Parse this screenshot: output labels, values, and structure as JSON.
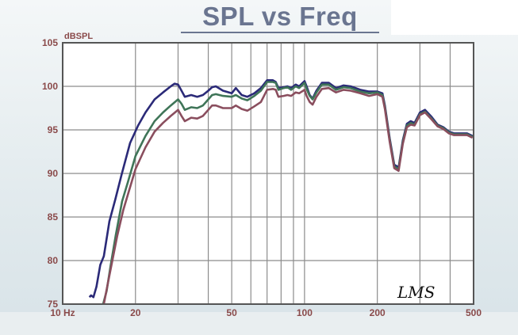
{
  "colors": {
    "plot_bg": "#ffffff",
    "frame": "#555555",
    "grid": "#8c8c8c",
    "axis_text": "#8a4a4a",
    "title": "#6a7590",
    "series_navy": "#2b2a78",
    "series_green": "#3f7558",
    "series_maroon": "#8a4e5e"
  },
  "chart_data": {
    "type": "line",
    "title": "SPL vs Freq",
    "ylabel": "dBSPL",
    "xlabel": "",
    "x_scale": "log",
    "xlim": [
      10,
      500
    ],
    "ylim": [
      75,
      105
    ],
    "grid": true,
    "x_ticks": [
      {
        "value": 10,
        "label": "10 Hz"
      },
      {
        "value": 20,
        "label": "20"
      },
      {
        "value": 50,
        "label": "50"
      },
      {
        "value": 100,
        "label": "100"
      },
      {
        "value": 200,
        "label": "200"
      },
      {
        "value": 500,
        "label": "500"
      }
    ],
    "y_ticks": [
      {
        "value": 75,
        "label": "75"
      },
      {
        "value": 80,
        "label": "80"
      },
      {
        "value": 85,
        "label": "85"
      },
      {
        "value": 90,
        "label": "90"
      },
      {
        "value": 95,
        "label": "95"
      },
      {
        "value": 100,
        "label": "100"
      },
      {
        "value": 105,
        "label": "105"
      }
    ],
    "annotation": "LMS",
    "series": [
      {
        "color": "#2b2a78",
        "points": [
          [
            12.9,
            75.8
          ],
          [
            13.1,
            76.0
          ],
          [
            13.4,
            75.8
          ],
          [
            13.8,
            77.0
          ],
          [
            14.3,
            79.5
          ],
          [
            14.8,
            80.5
          ],
          [
            15.6,
            84.5
          ],
          [
            16.5,
            87.0
          ],
          [
            17.5,
            89.8
          ],
          [
            19.0,
            93.5
          ],
          [
            20.5,
            95.5
          ],
          [
            22,
            97.0
          ],
          [
            24,
            98.5
          ],
          [
            26,
            99.3
          ],
          [
            28,
            100.0
          ],
          [
            29,
            100.3
          ],
          [
            30,
            100.2
          ],
          [
            31,
            99.5
          ],
          [
            32,
            98.8
          ],
          [
            34,
            99.0
          ],
          [
            36,
            98.8
          ],
          [
            38,
            99.0
          ],
          [
            40,
            99.5
          ],
          [
            41.5,
            99.9
          ],
          [
            43,
            100.0
          ],
          [
            46,
            99.5
          ],
          [
            50,
            99.2
          ],
          [
            52,
            99.8
          ],
          [
            55,
            99.0
          ],
          [
            58,
            98.8
          ],
          [
            62,
            99.2
          ],
          [
            66,
            99.8
          ],
          [
            70,
            100.7
          ],
          [
            74,
            100.7
          ],
          [
            76,
            100.5
          ],
          [
            78,
            99.8
          ],
          [
            82,
            99.9
          ],
          [
            85,
            100.0
          ],
          [
            88,
            99.8
          ],
          [
            92,
            100.2
          ],
          [
            95,
            100.0
          ],
          [
            100,
            100.6
          ],
          [
            102,
            100.0
          ],
          [
            105,
            99.0
          ],
          [
            108,
            98.6
          ],
          [
            112,
            99.5
          ],
          [
            118,
            100.4
          ],
          [
            126,
            100.4
          ],
          [
            135,
            99.8
          ],
          [
            145,
            100.1
          ],
          [
            155,
            100.0
          ],
          [
            170,
            99.6
          ],
          [
            185,
            99.4
          ],
          [
            200,
            99.4
          ],
          [
            210,
            99.2
          ],
          [
            215,
            97.8
          ],
          [
            225,
            94.0
          ],
          [
            235,
            91.0
          ],
          [
            245,
            90.7
          ],
          [
            255,
            93.8
          ],
          [
            265,
            95.7
          ],
          [
            275,
            96.0
          ],
          [
            285,
            95.8
          ],
          [
            300,
            97.0
          ],
          [
            315,
            97.3
          ],
          [
            335,
            96.5
          ],
          [
            355,
            95.6
          ],
          [
            375,
            95.3
          ],
          [
            395,
            94.8
          ],
          [
            415,
            94.6
          ],
          [
            440,
            94.6
          ],
          [
            470,
            94.6
          ],
          [
            495,
            94.3
          ]
        ]
      },
      {
        "color": "#3f7558",
        "points": [
          [
            14.7,
            75.0
          ],
          [
            15.2,
            76.5
          ],
          [
            15.8,
            79.5
          ],
          [
            16.6,
            83.0
          ],
          [
            17.6,
            86.8
          ],
          [
            18.6,
            89.0
          ],
          [
            20,
            92.0
          ],
          [
            22,
            94.3
          ],
          [
            24,
            96.0
          ],
          [
            26,
            97.0
          ],
          [
            28,
            97.8
          ],
          [
            30,
            98.5
          ],
          [
            31,
            98.0
          ],
          [
            32,
            97.3
          ],
          [
            34,
            97.6
          ],
          [
            36,
            97.5
          ],
          [
            38,
            97.8
          ],
          [
            40,
            98.5
          ],
          [
            41.5,
            99.0
          ],
          [
            43,
            99.1
          ],
          [
            46,
            98.9
          ],
          [
            50,
            98.8
          ],
          [
            52,
            99.0
          ],
          [
            55,
            98.6
          ],
          [
            58,
            98.4
          ],
          [
            62,
            98.9
          ],
          [
            66,
            99.5
          ],
          [
            70,
            100.5
          ],
          [
            74,
            100.5
          ],
          [
            76,
            100.4
          ],
          [
            78,
            99.6
          ],
          [
            82,
            99.8
          ],
          [
            85,
            99.9
          ],
          [
            88,
            99.6
          ],
          [
            92,
            100.0
          ],
          [
            95,
            99.8
          ],
          [
            100,
            100.4
          ],
          [
            102,
            99.7
          ],
          [
            105,
            98.9
          ],
          [
            108,
            98.5
          ],
          [
            112,
            99.3
          ],
          [
            118,
            100.2
          ],
          [
            126,
            100.2
          ],
          [
            135,
            99.6
          ],
          [
            145,
            99.9
          ],
          [
            155,
            99.8
          ],
          [
            170,
            99.4
          ],
          [
            185,
            99.2
          ],
          [
            200,
            99.3
          ],
          [
            210,
            99.0
          ],
          [
            215,
            97.6
          ],
          [
            225,
            93.8
          ],
          [
            235,
            90.8
          ],
          [
            245,
            90.5
          ],
          [
            255,
            93.6
          ],
          [
            265,
            95.5
          ],
          [
            275,
            95.8
          ],
          [
            285,
            95.6
          ],
          [
            300,
            96.8
          ],
          [
            315,
            97.1
          ],
          [
            335,
            96.3
          ],
          [
            355,
            95.5
          ],
          [
            375,
            95.2
          ],
          [
            395,
            94.7
          ],
          [
            415,
            94.5
          ],
          [
            440,
            94.5
          ],
          [
            470,
            94.5
          ],
          [
            495,
            94.2
          ]
        ]
      },
      {
        "color": "#8a4e5e",
        "points": [
          [
            14.8,
            75.0
          ],
          [
            15.4,
            77.5
          ],
          [
            16.0,
            79.8
          ],
          [
            16.8,
            82.8
          ],
          [
            17.8,
            85.8
          ],
          [
            18.8,
            88.0
          ],
          [
            20,
            90.5
          ],
          [
            22,
            93.0
          ],
          [
            24,
            94.8
          ],
          [
            26,
            95.8
          ],
          [
            28,
            96.6
          ],
          [
            30,
            97.3
          ],
          [
            31,
            96.6
          ],
          [
            32,
            96.0
          ],
          [
            34,
            96.4
          ],
          [
            36,
            96.3
          ],
          [
            38,
            96.6
          ],
          [
            40,
            97.3
          ],
          [
            41.5,
            97.8
          ],
          [
            43,
            97.8
          ],
          [
            46,
            97.5
          ],
          [
            50,
            97.5
          ],
          [
            52,
            97.8
          ],
          [
            55,
            97.4
          ],
          [
            58,
            97.2
          ],
          [
            62,
            97.7
          ],
          [
            66,
            98.2
          ],
          [
            70,
            99.6
          ],
          [
            74,
            99.7
          ],
          [
            76,
            99.6
          ],
          [
            78,
            98.8
          ],
          [
            82,
            98.9
          ],
          [
            85,
            99.0
          ],
          [
            88,
            98.9
          ],
          [
            92,
            99.3
          ],
          [
            95,
            99.2
          ],
          [
            100,
            99.6
          ],
          [
            102,
            98.9
          ],
          [
            105,
            98.2
          ],
          [
            108,
            97.9
          ],
          [
            112,
            98.8
          ],
          [
            118,
            99.7
          ],
          [
            126,
            99.8
          ],
          [
            135,
            99.3
          ],
          [
            145,
            99.6
          ],
          [
            155,
            99.5
          ],
          [
            170,
            99.2
          ],
          [
            185,
            98.9
          ],
          [
            200,
            99.1
          ],
          [
            210,
            98.8
          ],
          [
            215,
            97.4
          ],
          [
            225,
            93.6
          ],
          [
            235,
            90.6
          ],
          [
            245,
            90.3
          ],
          [
            255,
            93.4
          ],
          [
            265,
            95.3
          ],
          [
            275,
            95.6
          ],
          [
            285,
            95.5
          ],
          [
            300,
            96.7
          ],
          [
            315,
            97.0
          ],
          [
            335,
            96.2
          ],
          [
            355,
            95.4
          ],
          [
            375,
            95.1
          ],
          [
            395,
            94.6
          ],
          [
            415,
            94.4
          ],
          [
            440,
            94.4
          ],
          [
            470,
            94.4
          ],
          [
            495,
            94.1
          ]
        ]
      }
    ]
  }
}
